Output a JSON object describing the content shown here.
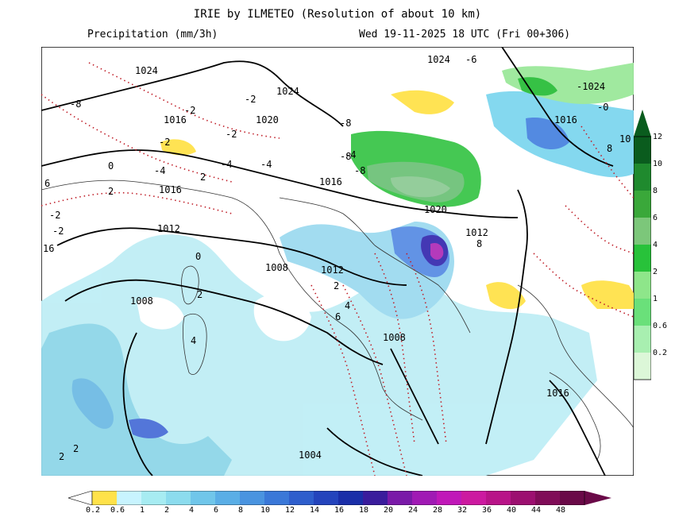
{
  "header": {
    "title": "IRIE by ILMETEO (Resolution of about 10 km)",
    "variable": "Precipitation (mm/3h)",
    "datetime": "Wed 19-11-2025 18 UTC (Fri 00+306)"
  },
  "isobar_labels": [
    "1024",
    "1024",
    "1020",
    "1016",
    "1016",
    "1012",
    "1008",
    "1008",
    "1012",
    "1020",
    "1016",
    "1012",
    "1008",
    "1004",
    "1024",
    "1016",
    "1016"
  ],
  "isotherm_labels": [
    "-6",
    "-8",
    "-2",
    "-2",
    "-2",
    "-2",
    "0",
    "2",
    "-4",
    "2",
    "-4",
    "-8",
    "-8",
    "-8",
    "-2",
    "6",
    "-2",
    "16",
    "0",
    "2",
    "4",
    "2",
    "4",
    "6",
    "8",
    "-1024",
    "-0",
    "10",
    "8",
    "-4",
    "-4",
    "2",
    "2"
  ],
  "colorbar_vertical": {
    "ticks": [
      "12",
      "10",
      "8",
      "6",
      "4",
      "2",
      "1",
      "0.6",
      "0.2"
    ],
    "colors": [
      "#0a5c1e",
      "#1f8a2e",
      "#3aa83a",
      "#7cc77a",
      "#28c23a",
      "#8ee68a",
      "#6ae07a",
      "#a8efb0",
      "#dcf7d8"
    ]
  },
  "colorbar_horizontal": {
    "ticks": [
      "0.2",
      "0.6",
      "1",
      "2",
      "4",
      "6",
      "8",
      "10",
      "12",
      "14",
      "16",
      "18",
      "20",
      "24",
      "28",
      "32",
      "36",
      "40",
      "44",
      "48"
    ],
    "colors": [
      "#ffe24a",
      "#c8f4ff",
      "#a7ecf2",
      "#8cdcee",
      "#70c6ea",
      "#5aaee6",
      "#4a94e0",
      "#3a78d8",
      "#2e5ecc",
      "#2444bc",
      "#1a2ea8",
      "#3a1c9c",
      "#7a1aa8",
      "#a01ab4",
      "#c018b8",
      "#cc1aa0",
      "#b81488",
      "#9c1070",
      "#800c58",
      "#6a0a48"
    ]
  },
  "colors": {
    "background": "#ffffff",
    "sea": "#ffffff",
    "isobar": "#000000",
    "isotherm": "#c0202a",
    "coast": "#333333"
  }
}
